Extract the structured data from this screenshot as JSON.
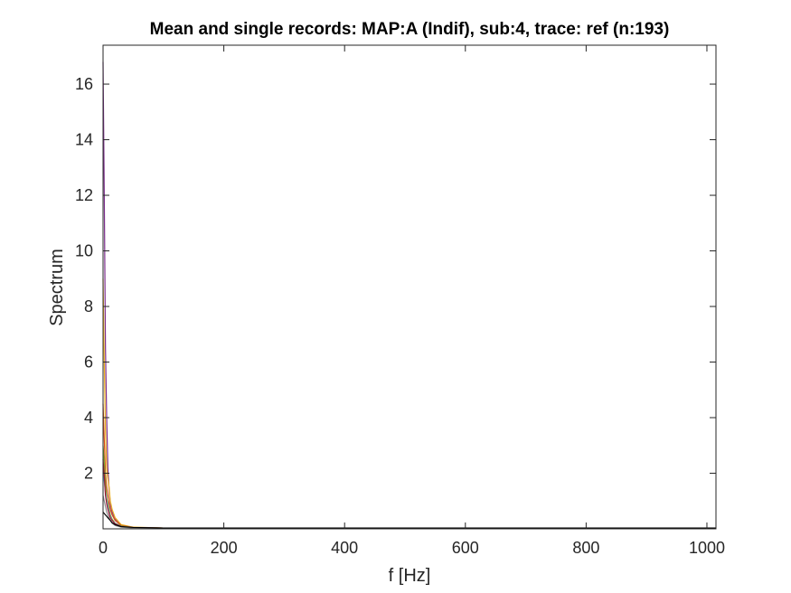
{
  "chart_data": {
    "type": "line",
    "title": "Mean and single records: MAP:A (Indif), sub:4, trace: ref (n:193)",
    "xlabel": "f [Hz]",
    "ylabel": "Spectrum",
    "xlim": [
      0,
      1015
    ],
    "ylim": [
      0,
      17.4
    ],
    "xticks": [
      0,
      200,
      400,
      600,
      800,
      1000
    ],
    "xtick_labels": [
      "0",
      "200",
      "400",
      "600",
      "800",
      "1000"
    ],
    "yticks": [
      2,
      4,
      6,
      8,
      10,
      12,
      14,
      16
    ],
    "ytick_labels": [
      "2",
      "4",
      "6",
      "8",
      "10",
      "12",
      "14",
      "16"
    ],
    "grid": false,
    "legend": "none",
    "series": [
      {
        "color": "#7e2f8e",
        "x": [
          0,
          2,
          4,
          6,
          8,
          10,
          12,
          15,
          20,
          30,
          50,
          100,
          1015
        ],
        "y": [
          16.8,
          12.0,
          6.5,
          4.0,
          2.2,
          1.4,
          0.9,
          0.6,
          0.35,
          0.12,
          0.05,
          0.03,
          0.03
        ]
      },
      {
        "color": "#edb120",
        "x": [
          0,
          2,
          4,
          6,
          8,
          10,
          12,
          15,
          20,
          30,
          50,
          100,
          1015
        ],
        "y": [
          9.0,
          6.0,
          3.5,
          2.2,
          1.8,
          1.5,
          1.0,
          0.7,
          0.4,
          0.15,
          0.06,
          0.03,
          0.03
        ]
      },
      {
        "color": "#d95319",
        "x": [
          0,
          2,
          4,
          6,
          8,
          10,
          12,
          15,
          20,
          30,
          50,
          100,
          1015
        ],
        "y": [
          4.5,
          3.2,
          2.0,
          1.5,
          1.2,
          0.9,
          0.7,
          0.5,
          0.3,
          0.12,
          0.05,
          0.03,
          0.03
        ]
      },
      {
        "color": "#77ac30",
        "x": [
          0,
          2,
          4,
          6,
          8,
          10,
          12,
          15,
          20,
          30,
          50,
          100,
          1015
        ],
        "y": [
          3.0,
          2.4,
          1.6,
          1.1,
          0.9,
          0.7,
          0.5,
          0.35,
          0.2,
          0.1,
          0.04,
          0.03,
          0.03
        ]
      },
      {
        "color": "#4dbeee",
        "x": [
          0,
          2,
          4,
          6,
          8,
          10,
          12,
          15,
          20,
          30,
          50,
          100,
          1015
        ],
        "y": [
          2.0,
          1.7,
          1.3,
          1.0,
          0.8,
          0.6,
          0.45,
          0.3,
          0.2,
          0.08,
          0.04,
          0.03,
          0.03
        ]
      },
      {
        "color": "#a2142f",
        "x": [
          0,
          2,
          4,
          6,
          8,
          10,
          12,
          15,
          20,
          30,
          50,
          100,
          1015
        ],
        "y": [
          2.5,
          1.9,
          1.2,
          0.9,
          0.7,
          0.55,
          0.4,
          0.3,
          0.18,
          0.08,
          0.04,
          0.03,
          0.03
        ]
      },
      {
        "color": "#8c8c8c",
        "x": [
          0,
          2,
          4,
          6,
          8,
          10,
          12,
          15,
          20,
          30,
          50,
          100,
          1015
        ],
        "y": [
          1.2,
          1.0,
          0.8,
          0.6,
          0.5,
          0.4,
          0.3,
          0.2,
          0.12,
          0.06,
          0.03,
          0.02,
          0.02
        ]
      },
      {
        "color": "#000000",
        "x": [
          0,
          2,
          4,
          6,
          8,
          10,
          12,
          15,
          20,
          30,
          50,
          100,
          1015
        ],
        "y": [
          0.6,
          0.55,
          0.5,
          0.45,
          0.4,
          0.35,
          0.3,
          0.22,
          0.15,
          0.08,
          0.05,
          0.03,
          0.03
        ]
      }
    ]
  }
}
